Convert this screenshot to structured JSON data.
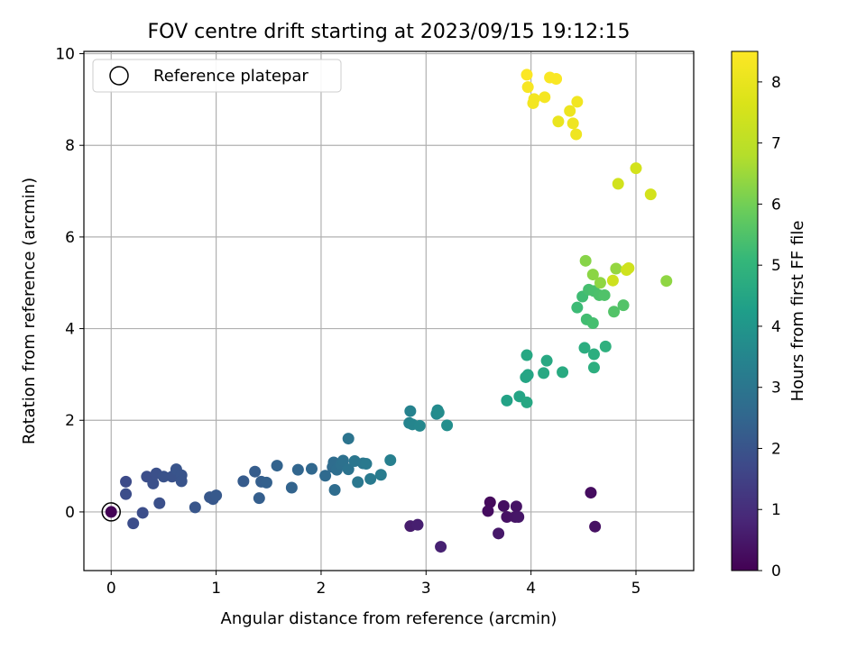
{
  "chart_data": {
    "type": "scatter",
    "title": "FOV centre drift starting at 2023/09/15 19:12:15",
    "xlabel": "Angular distance from reference (arcmin)",
    "ylabel": "Rotation from reference (arcmin)",
    "xlim": [
      -0.26,
      5.55
    ],
    "ylim": [
      -1.28,
      10.05
    ],
    "xticks": [
      "0",
      "1",
      "2",
      "3",
      "4",
      "5"
    ],
    "yticks": [
      "0",
      "2",
      "4",
      "6",
      "8",
      "10"
    ],
    "grid": true,
    "legend": {
      "placement": "upper-left",
      "entries": [
        "Reference platepar"
      ]
    },
    "reference": {
      "x": 0,
      "y": 0
    },
    "colorbar": {
      "label": "Hours from first FF file",
      "range": [
        0,
        8.5
      ],
      "ticks": [
        "0",
        "1",
        "2",
        "3",
        "4",
        "5",
        "6",
        "7",
        "8"
      ],
      "colormap": "viridis"
    },
    "points": [
      {
        "x": 0.0,
        "y": 0.0,
        "c": 0.05
      },
      {
        "x": 3.61,
        "y": 0.21,
        "c": 0.2
      },
      {
        "x": 3.59,
        "y": 0.02,
        "c": 0.25
      },
      {
        "x": 3.74,
        "y": 0.13,
        "c": 0.3
      },
      {
        "x": 3.77,
        "y": -0.11,
        "c": 0.35
      },
      {
        "x": 3.86,
        "y": 0.12,
        "c": 0.4
      },
      {
        "x": 3.85,
        "y": -0.11,
        "c": 0.42
      },
      {
        "x": 3.88,
        "y": -0.11,
        "c": 0.45
      },
      {
        "x": 3.69,
        "y": -0.47,
        "c": 0.5
      },
      {
        "x": 4.57,
        "y": 0.42,
        "c": 0.25
      },
      {
        "x": 4.61,
        "y": -0.32,
        "c": 0.35
      },
      {
        "x": 2.85,
        "y": -0.31,
        "c": 0.6
      },
      {
        "x": 2.92,
        "y": -0.28,
        "c": 0.65
      },
      {
        "x": 3.14,
        "y": -0.76,
        "c": 0.7
      },
      {
        "x": 0.14,
        "y": 0.66,
        "c": 1.75
      },
      {
        "x": 0.14,
        "y": 0.39,
        "c": 1.8
      },
      {
        "x": 0.21,
        "y": -0.25,
        "c": 1.8
      },
      {
        "x": 0.3,
        "y": -0.02,
        "c": 1.85
      },
      {
        "x": 0.34,
        "y": 0.77,
        "c": 1.85
      },
      {
        "x": 0.4,
        "y": 0.62,
        "c": 1.9
      },
      {
        "x": 0.43,
        "y": 0.84,
        "c": 1.9
      },
      {
        "x": 0.46,
        "y": 0.19,
        "c": 1.9
      },
      {
        "x": 0.5,
        "y": 0.77,
        "c": 1.95
      },
      {
        "x": 0.58,
        "y": 0.77,
        "c": 1.95
      },
      {
        "x": 0.62,
        "y": 0.93,
        "c": 2.0
      },
      {
        "x": 0.67,
        "y": 0.8,
        "c": 2.0
      },
      {
        "x": 0.67,
        "y": 0.67,
        "c": 2.0
      },
      {
        "x": 0.8,
        "y": 0.1,
        "c": 2.05
      },
      {
        "x": 0.94,
        "y": 0.32,
        "c": 2.1
      },
      {
        "x": 0.97,
        "y": 0.28,
        "c": 2.1
      },
      {
        "x": 1.0,
        "y": 0.36,
        "c": 2.15
      },
      {
        "x": 1.26,
        "y": 0.67,
        "c": 2.2
      },
      {
        "x": 1.37,
        "y": 0.88,
        "c": 2.25
      },
      {
        "x": 1.41,
        "y": 0.3,
        "c": 2.3
      },
      {
        "x": 1.43,
        "y": 0.66,
        "c": 2.3
      },
      {
        "x": 1.48,
        "y": 0.64,
        "c": 2.35
      },
      {
        "x": 1.58,
        "y": 1.01,
        "c": 2.4
      },
      {
        "x": 1.72,
        "y": 0.53,
        "c": 2.45
      },
      {
        "x": 1.78,
        "y": 0.92,
        "c": 2.5
      },
      {
        "x": 1.91,
        "y": 0.94,
        "c": 2.55
      },
      {
        "x": 2.04,
        "y": 0.79,
        "c": 2.6
      },
      {
        "x": 2.11,
        "y": 0.98,
        "c": 2.65
      },
      {
        "x": 2.12,
        "y": 1.08,
        "c": 2.7
      },
      {
        "x": 2.13,
        "y": 0.48,
        "c": 2.7
      },
      {
        "x": 2.15,
        "y": 0.92,
        "c": 2.75
      },
      {
        "x": 2.19,
        "y": 1.04,
        "c": 2.8
      },
      {
        "x": 2.21,
        "y": 1.12,
        "c": 2.85
      },
      {
        "x": 2.26,
        "y": 0.93,
        "c": 2.9
      },
      {
        "x": 2.26,
        "y": 1.6,
        "c": 2.95
      },
      {
        "x": 2.32,
        "y": 1.11,
        "c": 3.0
      },
      {
        "x": 2.35,
        "y": 0.65,
        "c": 3.05
      },
      {
        "x": 2.4,
        "y": 1.06,
        "c": 3.05
      },
      {
        "x": 2.43,
        "y": 1.05,
        "c": 3.1
      },
      {
        "x": 2.47,
        "y": 0.72,
        "c": 3.15
      },
      {
        "x": 2.57,
        "y": 0.81,
        "c": 3.2
      },
      {
        "x": 2.66,
        "y": 1.13,
        "c": 3.3
      },
      {
        "x": 2.85,
        "y": 2.2,
        "c": 3.4
      },
      {
        "x": 2.84,
        "y": 1.94,
        "c": 3.45
      },
      {
        "x": 2.87,
        "y": 1.91,
        "c": 3.5
      },
      {
        "x": 2.94,
        "y": 1.88,
        "c": 3.55
      },
      {
        "x": 3.1,
        "y": 2.14,
        "c": 3.6
      },
      {
        "x": 3.11,
        "y": 2.22,
        "c": 3.65
      },
      {
        "x": 3.12,
        "y": 2.17,
        "c": 3.7
      },
      {
        "x": 3.2,
        "y": 1.89,
        "c": 3.75
      },
      {
        "x": 3.77,
        "y": 2.43,
        "c": 4.4
      },
      {
        "x": 3.89,
        "y": 2.52,
        "c": 4.45
      },
      {
        "x": 3.95,
        "y": 2.94,
        "c": 4.5
      },
      {
        "x": 3.97,
        "y": 2.99,
        "c": 4.5
      },
      {
        "x": 3.96,
        "y": 3.42,
        "c": 4.55
      },
      {
        "x": 3.96,
        "y": 2.39,
        "c": 4.55
      },
      {
        "x": 4.12,
        "y": 3.03,
        "c": 4.6
      },
      {
        "x": 4.15,
        "y": 3.3,
        "c": 4.6
      },
      {
        "x": 4.3,
        "y": 3.05,
        "c": 4.65
      },
      {
        "x": 4.51,
        "y": 3.58,
        "c": 4.75
      },
      {
        "x": 4.6,
        "y": 3.44,
        "c": 4.8
      },
      {
        "x": 4.6,
        "y": 3.15,
        "c": 4.8
      },
      {
        "x": 4.71,
        "y": 3.61,
        "c": 4.85
      },
      {
        "x": 4.44,
        "y": 4.46,
        "c": 5.2
      },
      {
        "x": 4.49,
        "y": 4.7,
        "c": 5.25
      },
      {
        "x": 4.53,
        "y": 4.2,
        "c": 5.3
      },
      {
        "x": 4.55,
        "y": 4.85,
        "c": 5.35
      },
      {
        "x": 4.59,
        "y": 4.12,
        "c": 5.35
      },
      {
        "x": 4.6,
        "y": 4.82,
        "c": 5.4
      },
      {
        "x": 4.65,
        "y": 4.73,
        "c": 5.45
      },
      {
        "x": 4.7,
        "y": 4.73,
        "c": 5.5
      },
      {
        "x": 4.79,
        "y": 4.37,
        "c": 5.55
      },
      {
        "x": 4.88,
        "y": 4.51,
        "c": 5.55
      },
      {
        "x": 4.52,
        "y": 5.48,
        "c": 6.25
      },
      {
        "x": 4.59,
        "y": 5.18,
        "c": 6.3
      },
      {
        "x": 4.66,
        "y": 5.0,
        "c": 6.35
      },
      {
        "x": 4.81,
        "y": 5.31,
        "c": 6.4
      },
      {
        "x": 5.29,
        "y": 5.04,
        "c": 6.35
      },
      {
        "x": 4.78,
        "y": 5.05,
        "c": 7.35
      },
      {
        "x": 4.91,
        "y": 5.28,
        "c": 7.4
      },
      {
        "x": 4.93,
        "y": 5.32,
        "c": 7.4
      },
      {
        "x": 4.83,
        "y": 7.16,
        "c": 7.45
      },
      {
        "x": 5.14,
        "y": 6.93,
        "c": 7.5
      },
      {
        "x": 5.0,
        "y": 7.5,
        "c": 7.5
      },
      {
        "x": 4.26,
        "y": 8.52,
        "c": 8.05
      },
      {
        "x": 4.37,
        "y": 8.75,
        "c": 8.1
      },
      {
        "x": 4.4,
        "y": 8.48,
        "c": 8.15
      },
      {
        "x": 4.43,
        "y": 8.24,
        "c": 8.15
      },
      {
        "x": 4.44,
        "y": 8.95,
        "c": 8.2
      },
      {
        "x": 4.02,
        "y": 8.92,
        "c": 8.25
      },
      {
        "x": 4.03,
        "y": 9.01,
        "c": 8.25
      },
      {
        "x": 4.13,
        "y": 9.05,
        "c": 8.3
      },
      {
        "x": 3.97,
        "y": 9.27,
        "c": 8.35
      },
      {
        "x": 4.18,
        "y": 9.48,
        "c": 8.4
      },
      {
        "x": 4.24,
        "y": 9.45,
        "c": 8.4
      },
      {
        "x": 3.96,
        "y": 9.54,
        "c": 8.45
      }
    ]
  }
}
